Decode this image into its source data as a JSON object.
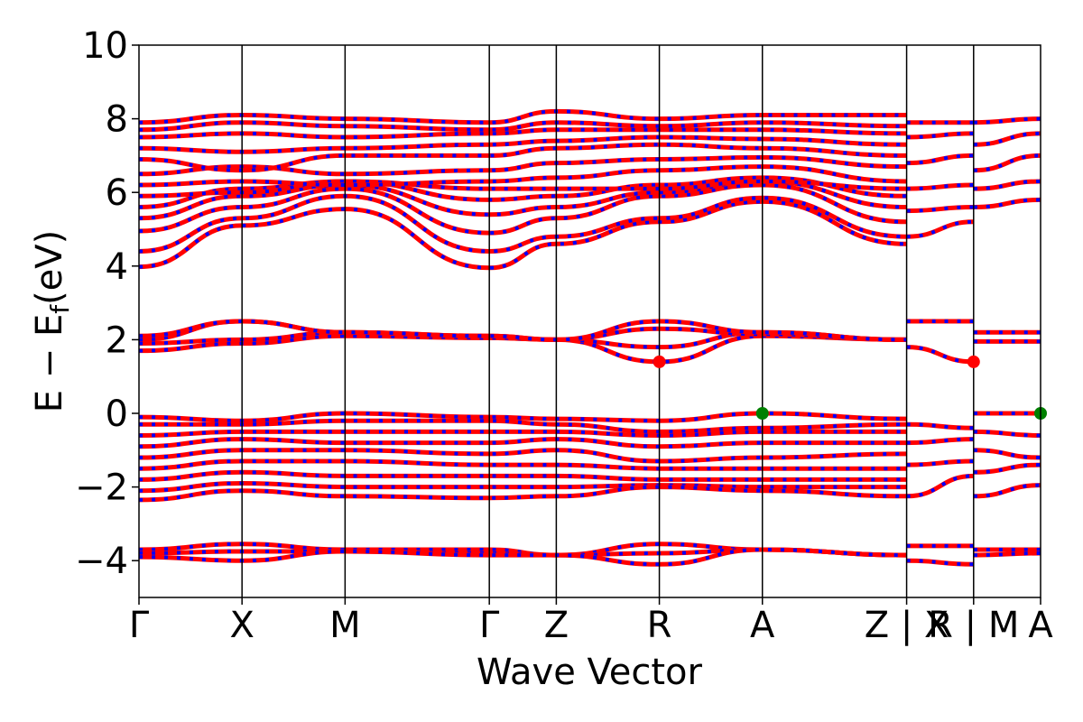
{
  "chart_data": {
    "type": "line",
    "xlabel": "Wave Vector",
    "ylabel": "E − E",
    "ylabel_sub": "f",
    "ylabel_unit": "(eV)",
    "ylim": [
      -5,
      10
    ],
    "y_ticks": [
      -4,
      -2,
      0,
      2,
      4,
      6,
      8,
      10
    ],
    "y_tick_labels": [
      "−4",
      "−2",
      "0",
      "2",
      "4",
      "6",
      "8",
      "10"
    ],
    "kpoint_positions": [
      0,
      1,
      2,
      3.4,
      4.05,
      5.05,
      6.05,
      7.45,
      8.1,
      8.75
    ],
    "kpoint_labels": [
      "Γ",
      "X",
      "M",
      "Γ",
      "Z",
      "R",
      "A",
      "Z | X",
      "R | M",
      "A"
    ],
    "segment_breaks": [
      7.45,
      8.1
    ],
    "line_colors": {
      "spin_up": "#ff0000",
      "spin_down": "#0000ff"
    },
    "series": [
      {
        "x": [
          0,
          1,
          2,
          3.4,
          4.05,
          5.05,
          6.05,
          7.45
        ],
        "values": [
          3.98,
          5.1,
          5.55,
          3.95,
          4.6,
          5.2,
          5.75,
          4.6
        ]
      },
      {
        "x": [
          0,
          1,
          2,
          3.4,
          4.05,
          5.05,
          6.05,
          7.45
        ],
        "values": [
          4.4,
          5.3,
          5.9,
          4.4,
          4.8,
          5.3,
          5.85,
          4.8
        ]
      },
      {
        "x": [
          0,
          1,
          2,
          3.4,
          4.05,
          5.05,
          6.05,
          7.45
        ],
        "values": [
          4.95,
          5.6,
          6.1,
          4.9,
          5.3,
          5.9,
          6.2,
          5.2
        ]
      },
      {
        "x": [
          0,
          1,
          2,
          3.4,
          4.05,
          5.05,
          6.05,
          7.45
        ],
        "values": [
          5.3,
          5.9,
          6.2,
          5.4,
          5.6,
          6.0,
          6.3,
          5.6
        ]
      },
      {
        "x": [
          0,
          1,
          2,
          3.4,
          4.05,
          5.05,
          6.05,
          7.45
        ],
        "values": [
          5.6,
          6.1,
          6.3,
          5.8,
          5.9,
          6.2,
          6.4,
          5.9
        ]
      },
      {
        "x": [
          0,
          1,
          2,
          3.4,
          4.05,
          5.05,
          6.05,
          7.45
        ],
        "values": [
          5.9,
          6.0,
          6.3,
          6.1,
          6.1,
          6.1,
          6.3,
          6.1
        ]
      },
      {
        "x": [
          0,
          1,
          2,
          3.4,
          4.05,
          5.05,
          6.05,
          7.45
        ],
        "values": [
          6.2,
          6.3,
          6.2,
          6.3,
          6.4,
          6.6,
          6.7,
          6.3
        ]
      },
      {
        "x": [
          0,
          1,
          2,
          3.4,
          4.05,
          5.05,
          6.05,
          7.45
        ],
        "values": [
          6.5,
          6.7,
          6.5,
          6.6,
          6.8,
          6.9,
          6.95,
          6.7
        ]
      },
      {
        "x": [
          0,
          1,
          2,
          3.4,
          4.05,
          5.05,
          6.05,
          7.45
        ],
        "values": [
          6.9,
          6.6,
          7.0,
          7.0,
          7.2,
          7.3,
          7.2,
          7.0
        ]
      },
      {
        "x": [
          0,
          1,
          2,
          3.4,
          4.05,
          5.05,
          6.05,
          7.45
        ],
        "values": [
          7.2,
          7.1,
          7.2,
          7.3,
          7.4,
          7.5,
          7.45,
          7.3
        ]
      },
      {
        "x": [
          0,
          1,
          2,
          3.4,
          4.05,
          5.05,
          6.05,
          7.45
        ],
        "values": [
          7.5,
          7.6,
          7.5,
          7.6,
          7.7,
          7.7,
          7.7,
          7.6
        ]
      },
      {
        "x": [
          0,
          1,
          2,
          3.4,
          4.05,
          5.05,
          6.05,
          7.45
        ],
        "values": [
          7.7,
          7.9,
          7.8,
          7.7,
          7.9,
          7.8,
          7.9,
          7.8
        ]
      },
      {
        "x": [
          0,
          1,
          2,
          3.4,
          4.05,
          5.05,
          6.05,
          7.45
        ],
        "values": [
          7.9,
          8.1,
          8.0,
          7.9,
          8.2,
          8.0,
          8.1,
          8.1
        ]
      },
      {
        "x": [
          0,
          1,
          2,
          3.4,
          4.05,
          5.05,
          6.05,
          7.45
        ],
        "values": [
          1.7,
          1.9,
          2.1,
          2.05,
          2.0,
          1.4,
          2.1,
          2.0
        ]
      },
      {
        "x": [
          0,
          1,
          2,
          3.4,
          4.05,
          5.05,
          6.05,
          7.45
        ],
        "values": [
          1.9,
          2.0,
          2.2,
          2.05,
          2.0,
          1.8,
          2.2,
          2.0
        ]
      },
      {
        "x": [
          0,
          1,
          2,
          3.4,
          4.05,
          5.05,
          6.05,
          7.45
        ],
        "values": [
          2.0,
          2.5,
          2.2,
          2.1,
          2.0,
          2.3,
          2.15,
          2.0
        ]
      },
      {
        "x": [
          0,
          1,
          2,
          3.4,
          4.05,
          5.05,
          6.05,
          7.45
        ],
        "values": [
          2.1,
          2.5,
          2.2,
          2.1,
          2.0,
          2.5,
          2.2,
          2.0
        ]
      },
      {
        "x": [
          0,
          1,
          2,
          3.4,
          4.05,
          5.05,
          6.05,
          7.45
        ],
        "values": [
          -0.1,
          -0.2,
          0.0,
          -0.1,
          -0.15,
          -0.2,
          0.0,
          -0.15
        ]
      },
      {
        "x": [
          0,
          1,
          2,
          3.4,
          4.05,
          5.05,
          6.05,
          7.45
        ],
        "values": [
          -0.3,
          -0.3,
          -0.2,
          -0.2,
          -0.3,
          -0.5,
          -0.4,
          -0.3
        ]
      },
      {
        "x": [
          0,
          1,
          2,
          3.4,
          4.05,
          5.05,
          6.05,
          7.45
        ],
        "values": [
          -0.6,
          -0.5,
          -0.5,
          -0.5,
          -0.5,
          -0.6,
          -0.5,
          -0.5
        ]
      },
      {
        "x": [
          0,
          1,
          2,
          3.4,
          4.05,
          5.05,
          6.05,
          7.45
        ],
        "values": [
          -0.9,
          -0.7,
          -0.8,
          -0.8,
          -0.7,
          -0.9,
          -0.8,
          -0.8
        ]
      },
      {
        "x": [
          0,
          1,
          2,
          3.4,
          4.05,
          5.05,
          6.05,
          7.45
        ],
        "values": [
          -1.2,
          -1.0,
          -1.0,
          -1.1,
          -1.0,
          -1.3,
          -1.2,
          -1.1
        ]
      },
      {
        "x": [
          0,
          1,
          2,
          3.4,
          4.05,
          5.05,
          6.05,
          7.45
        ],
        "values": [
          -1.5,
          -1.3,
          -1.3,
          -1.4,
          -1.4,
          -1.5,
          -1.5,
          -1.5
        ]
      },
      {
        "x": [
          0,
          1,
          2,
          3.4,
          4.05,
          5.05,
          6.05,
          7.45
        ],
        "values": [
          -1.8,
          -1.6,
          -1.7,
          -1.7,
          -1.7,
          -1.8,
          -1.8,
          -1.8
        ]
      },
      {
        "x": [
          0,
          1,
          2,
          3.4,
          4.05,
          5.05,
          6.05,
          7.45
        ],
        "values": [
          -2.1,
          -1.9,
          -2.0,
          -2.0,
          -2.0,
          -1.95,
          -2.0,
          -2.0
        ]
      },
      {
        "x": [
          0,
          1,
          2,
          3.4,
          4.05,
          5.05,
          6.05,
          7.45
        ],
        "values": [
          -2.35,
          -2.1,
          -2.25,
          -2.3,
          -2.25,
          -2.0,
          -2.1,
          -2.25
        ]
      },
      {
        "x": [
          0,
          1,
          2,
          3.4,
          4.05,
          5.05,
          6.05,
          7.45
        ],
        "values": [
          -3.7,
          -3.55,
          -3.7,
          -3.7,
          -3.85,
          -3.55,
          -3.7,
          -3.85
        ]
      },
      {
        "x": [
          0,
          1,
          2,
          3.4,
          4.05,
          5.05,
          6.05,
          7.45
        ],
        "values": [
          -3.8,
          -3.75,
          -3.75,
          -3.8,
          -3.85,
          -3.8,
          -3.7,
          -3.85
        ]
      },
      {
        "x": [
          0,
          1,
          2,
          3.4,
          4.05,
          5.05,
          6.05,
          7.45
        ],
        "values": [
          -3.9,
          -4.0,
          -3.75,
          -3.85,
          -3.85,
          -4.1,
          -3.7,
          -3.85
        ]
      },
      {
        "x": [
          7.45,
          8.1
        ],
        "values": [
          4.8,
          5.2
        ]
      },
      {
        "x": [
          7.45,
          8.1
        ],
        "values": [
          5.5,
          5.6
        ]
      },
      {
        "x": [
          7.45,
          8.1
        ],
        "values": [
          6.1,
          6.2
        ]
      },
      {
        "x": [
          7.45,
          8.1
        ],
        "values": [
          6.8,
          7.0
        ]
      },
      {
        "x": [
          7.45,
          8.1
        ],
        "values": [
          7.5,
          7.6
        ]
      },
      {
        "x": [
          7.45,
          8.1
        ],
        "values": [
          7.9,
          7.9
        ]
      },
      {
        "x": [
          7.45,
          8.1
        ],
        "values": [
          2.5,
          2.5
        ]
      },
      {
        "x": [
          7.45,
          8.1
        ],
        "values": [
          1.8,
          1.4
        ]
      },
      {
        "x": [
          7.45,
          8.1
        ],
        "values": [
          -0.3,
          -0.4
        ]
      },
      {
        "x": [
          7.45,
          8.1
        ],
        "values": [
          -0.8,
          -0.7
        ]
      },
      {
        "x": [
          7.45,
          8.1
        ],
        "values": [
          -1.4,
          -1.3
        ]
      },
      {
        "x": [
          7.45,
          8.1
        ],
        "values": [
          -2.25,
          -1.7
        ]
      },
      {
        "x": [
          7.45,
          8.1
        ],
        "values": [
          -3.6,
          -3.6
        ]
      },
      {
        "x": [
          7.45,
          8.1
        ],
        "values": [
          -4.0,
          -4.1
        ]
      },
      {
        "x": [
          8.1,
          8.75
        ],
        "values": [
          5.6,
          5.8
        ]
      },
      {
        "x": [
          8.1,
          8.75
        ],
        "values": [
          6.1,
          6.3
        ]
      },
      {
        "x": [
          8.1,
          8.75
        ],
        "values": [
          6.6,
          7.0
        ]
      },
      {
        "x": [
          8.1,
          8.75
        ],
        "values": [
          7.3,
          7.6
        ]
      },
      {
        "x": [
          8.1,
          8.75
        ],
        "values": [
          7.9,
          8.0
        ]
      },
      {
        "x": [
          8.1,
          8.75
        ],
        "values": [
          2.2,
          2.2
        ]
      },
      {
        "x": [
          8.1,
          8.75
        ],
        "values": [
          1.95,
          1.95
        ]
      },
      {
        "x": [
          8.1,
          8.75
        ],
        "values": [
          0.0,
          0.0
        ]
      },
      {
        "x": [
          8.1,
          8.75
        ],
        "values": [
          -0.5,
          -0.6
        ]
      },
      {
        "x": [
          8.1,
          8.75
        ],
        "values": [
          -1.0,
          -1.2
        ]
      },
      {
        "x": [
          8.1,
          8.75
        ],
        "values": [
          -1.6,
          -1.4
        ]
      },
      {
        "x": [
          8.1,
          8.75
        ],
        "values": [
          -2.25,
          -1.95
        ]
      },
      {
        "x": [
          8.1,
          8.75
        ],
        "values": [
          -3.7,
          -3.7
        ]
      },
      {
        "x": [
          8.1,
          8.75
        ],
        "values": [
          -3.85,
          -3.8
        ]
      }
    ],
    "markers": [
      {
        "x": 5.05,
        "y": 1.4,
        "color": "#ff0000"
      },
      {
        "x": 8.1,
        "y": 1.4,
        "color": "#ff0000"
      },
      {
        "x": 6.05,
        "y": 0.0,
        "color": "#008000"
      },
      {
        "x": 8.75,
        "y": 0.0,
        "color": "#008000"
      }
    ]
  }
}
